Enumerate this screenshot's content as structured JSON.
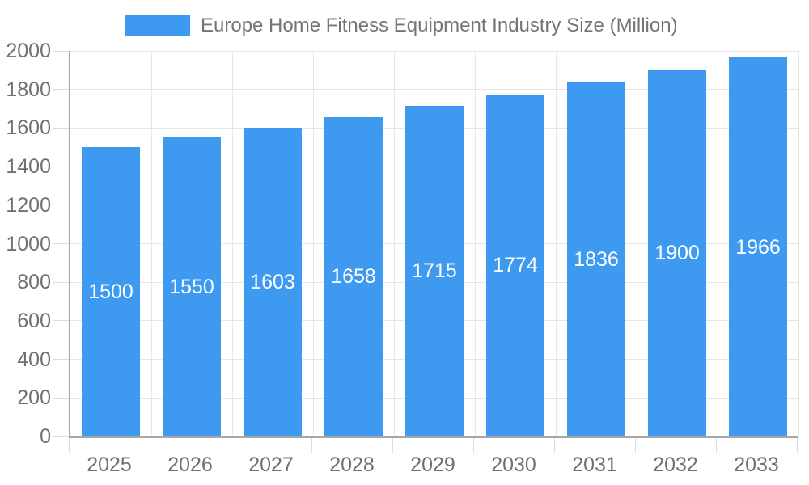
{
  "legend": {
    "label": "Europe Home Fitness Equipment Industry Size (Million)"
  },
  "chart_data": {
    "type": "bar",
    "title": "Europe Home Fitness Equipment Industry Size (Million)",
    "categories": [
      "2025",
      "2026",
      "2027",
      "2028",
      "2029",
      "2030",
      "2031",
      "2032",
      "2033"
    ],
    "values": [
      1500,
      1550,
      1603,
      1658,
      1715,
      1774,
      1836,
      1900,
      1966
    ],
    "bar_labels": [
      "1500",
      "1550",
      "1603",
      "1658",
      "1715",
      "1774",
      "1836",
      "1900",
      "1966"
    ],
    "xlabel": "",
    "ylabel": "",
    "ylim": [
      0,
      2000
    ],
    "ytick_step": 200,
    "ytick_labels": [
      "0",
      "200",
      "400",
      "600",
      "800",
      "1000",
      "1200",
      "1400",
      "1600",
      "1800",
      "2000"
    ],
    "grid": true,
    "legend_position": "top",
    "bar_color": "#3d9af0",
    "bar_label_color": "#ffffff",
    "axis_color": "#a6a6a6",
    "grid_color": "#e6e6e6",
    "tick_color": "#dcdcdc",
    "tick_label_color": "#707070",
    "background_color": "#ffffff"
  }
}
